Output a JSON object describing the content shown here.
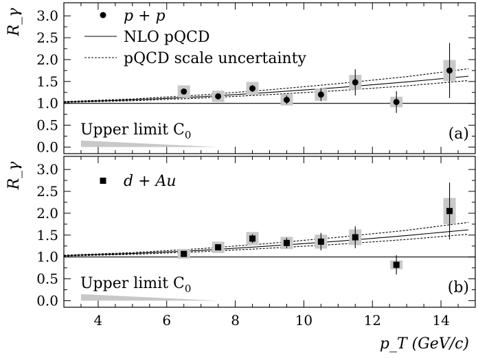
{
  "chart_data": [
    {
      "type": "scatter",
      "panel_tag": "(a)",
      "ylabel": "R_γ",
      "xlabel": "",
      "xlim": [
        3,
        15
      ],
      "ylim": [
        -0.15,
        3.3
      ],
      "yticks": [
        0.0,
        0.5,
        1.0,
        1.5,
        2.0,
        2.5,
        3.0
      ],
      "ytick_labels": [
        "0.0",
        "0.5",
        "1.0",
        "1.5",
        "2.0",
        "2.5",
        "3.0"
      ],
      "xticks": [
        4,
        6,
        8,
        10,
        12,
        14
      ],
      "legend": [
        {
          "label": "p + p",
          "marker": "circle"
        },
        {
          "label": "NLO pQCD",
          "style": "solid"
        },
        {
          "label": "pQCD scale uncertainty",
          "style": "dashed"
        }
      ],
      "reference_line": 1.0,
      "upper_limit_label": "Upper limit C",
      "upper_limit_subscript": "0",
      "upper_limit_band": {
        "x": [
          3.5,
          7.5
        ],
        "y_top": [
          0.15,
          0.0
        ]
      },
      "points": [
        {
          "x": 6.5,
          "y": 1.27,
          "err": 0.05,
          "sys": 0.14
        },
        {
          "x": 7.5,
          "y": 1.16,
          "err": 0.05,
          "sys": 0.13
        },
        {
          "x": 8.5,
          "y": 1.34,
          "err": 0.08,
          "sys": 0.15
        },
        {
          "x": 9.5,
          "y": 1.08,
          "err": 0.1,
          "sys": 0.13
        },
        {
          "x": 10.5,
          "y": 1.2,
          "err": 0.15,
          "sys": 0.14
        },
        {
          "x": 11.5,
          "y": 1.48,
          "err": 0.3,
          "sys": 0.17
        },
        {
          "x": 12.7,
          "y": 1.03,
          "err": 0.25,
          "sys": 0.12
        },
        {
          "x": 14.25,
          "y": 1.75,
          "err": 0.63,
          "sys": 0.24
        }
      ],
      "nlo_curve": {
        "x": [
          3,
          5,
          7,
          9,
          11,
          13,
          14.8
        ],
        "y": [
          1.03,
          1.08,
          1.15,
          1.25,
          1.36,
          1.49,
          1.62
        ]
      },
      "scale_upper": {
        "x": [
          3,
          5,
          7,
          9,
          11,
          13,
          14.8
        ],
        "y": [
          1.04,
          1.1,
          1.19,
          1.31,
          1.45,
          1.61,
          1.79
        ]
      },
      "scale_lower": {
        "x": [
          3,
          5,
          7,
          9,
          11,
          13,
          14.8
        ],
        "y": [
          1.02,
          1.06,
          1.12,
          1.2,
          1.29,
          1.4,
          1.52
        ]
      }
    },
    {
      "type": "scatter",
      "panel_tag": "(b)",
      "ylabel": "R_γ",
      "xlabel": "p_T (GeV/c)",
      "xlim": [
        3,
        15
      ],
      "ylim": [
        -0.15,
        3.3
      ],
      "yticks": [
        0.0,
        0.5,
        1.0,
        1.5,
        2.0,
        2.5,
        3.0
      ],
      "ytick_labels": [
        "0.0",
        "0.5",
        "1.0",
        "1.5",
        "2.0",
        "2.5",
        "3.0"
      ],
      "xticks": [
        4,
        6,
        8,
        10,
        12,
        14
      ],
      "xtick_labels": [
        "4",
        "6",
        "8",
        "10",
        "12",
        "14"
      ],
      "legend": [
        {
          "label": "d + Au",
          "marker": "square"
        }
      ],
      "reference_line": 1.0,
      "upper_limit_label": "Upper limit C",
      "upper_limit_subscript": "0",
      "upper_limit_band": {
        "x": [
          3.5,
          7.5
        ],
        "y_top": [
          0.15,
          0.0
        ]
      },
      "points": [
        {
          "x": 6.5,
          "y": 1.07,
          "err": 0.05,
          "sys": 0.11
        },
        {
          "x": 7.5,
          "y": 1.22,
          "err": 0.07,
          "sys": 0.13
        },
        {
          "x": 8.5,
          "y": 1.42,
          "err": 0.1,
          "sys": 0.15
        },
        {
          "x": 9.5,
          "y": 1.32,
          "err": 0.12,
          "sys": 0.14
        },
        {
          "x": 10.5,
          "y": 1.35,
          "err": 0.2,
          "sys": 0.16
        },
        {
          "x": 11.5,
          "y": 1.45,
          "err": 0.25,
          "sys": 0.18
        },
        {
          "x": 12.7,
          "y": 0.82,
          "err": 0.22,
          "sys": 0.1
        },
        {
          "x": 14.25,
          "y": 2.05,
          "err": 0.65,
          "sys": 0.3
        }
      ],
      "nlo_curve": {
        "x": [
          3,
          5,
          7,
          9,
          11,
          13,
          14.8
        ],
        "y": [
          1.03,
          1.08,
          1.15,
          1.25,
          1.36,
          1.49,
          1.62
        ]
      },
      "scale_upper": {
        "x": [
          3,
          5,
          7,
          9,
          11,
          13,
          14.8
        ],
        "y": [
          1.04,
          1.1,
          1.19,
          1.31,
          1.45,
          1.61,
          1.79
        ]
      },
      "scale_lower": {
        "x": [
          3,
          5,
          7,
          9,
          11,
          13,
          14.8
        ],
        "y": [
          1.02,
          1.06,
          1.12,
          1.2,
          1.29,
          1.4,
          1.52
        ]
      }
    }
  ],
  "colors": {
    "sys_box": "#c8c8c8",
    "limit_band": "#c8c8c8",
    "ink": "#000000"
  }
}
